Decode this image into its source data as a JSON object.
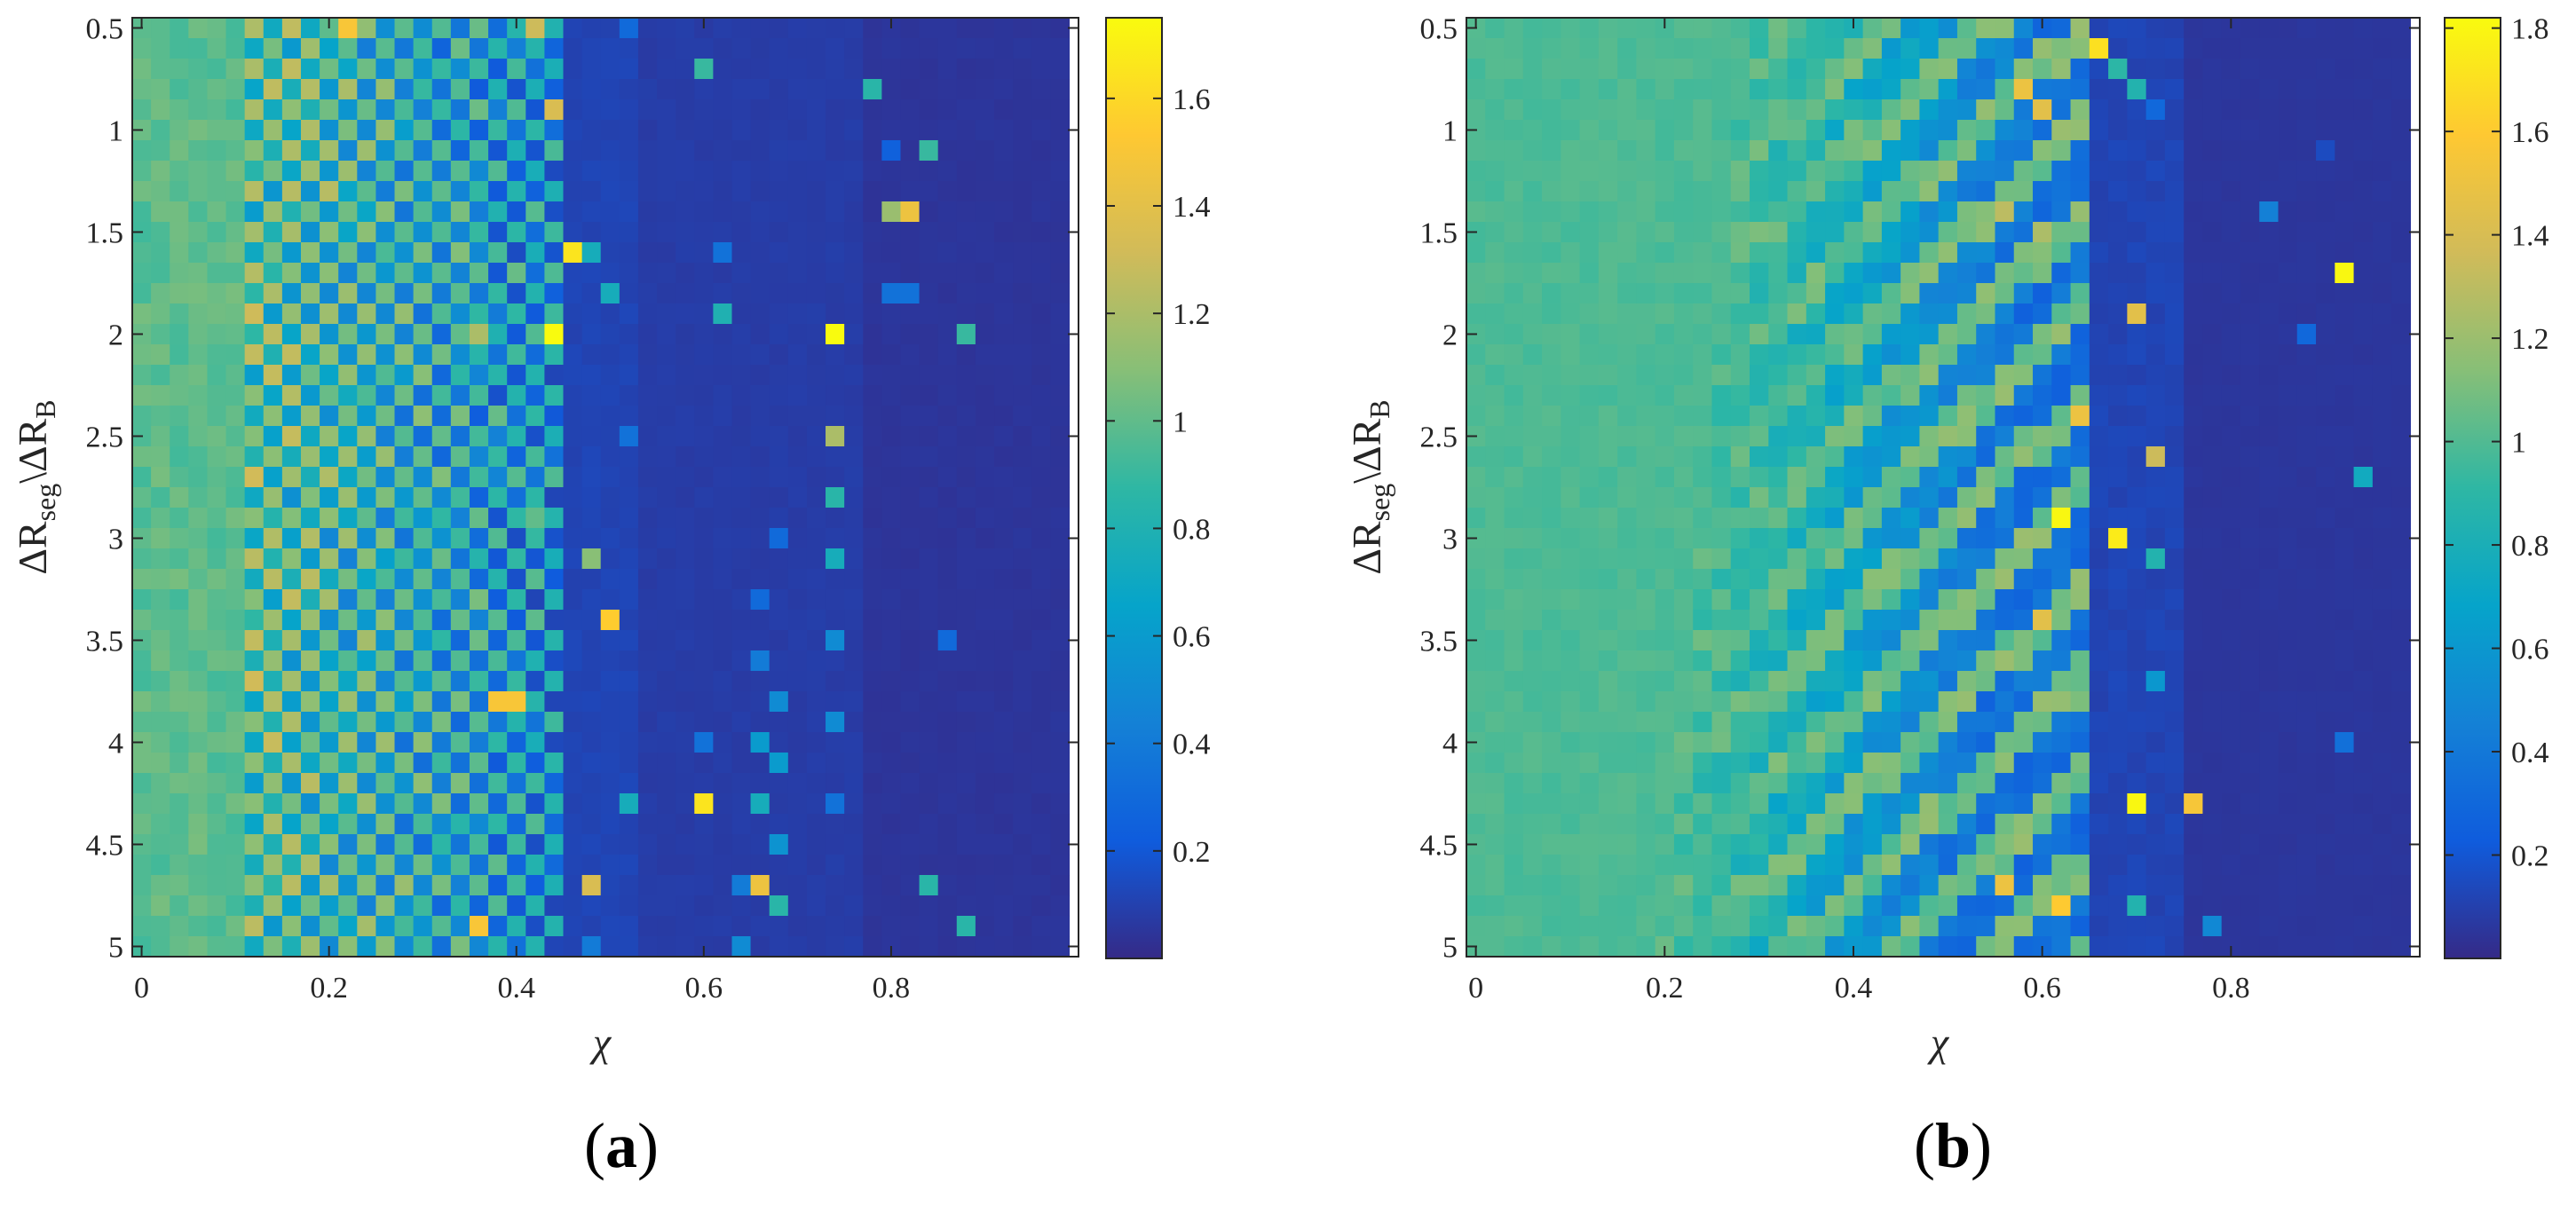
{
  "colormap": "parula",
  "colormap_stops": [
    "#352a87",
    "#0f5cdd",
    "#1481d6",
    "#06a4ca",
    "#2eb7a4",
    "#87bf77",
    "#d1bb59",
    "#fec832",
    "#f9fb0e"
  ],
  "chart_data": [
    {
      "type": "heatmap",
      "panel_label": "(a)",
      "panel_letter": "a",
      "xlabel": "χ",
      "ylabel_parts": [
        "ΔR",
        "seg",
        "\\ΔR",
        "B"
      ],
      "x_ticks": [
        0,
        0.2,
        0.4,
        0.6,
        0.8
      ],
      "x_tick_labels": [
        "0",
        "0.2",
        "0.4",
        "0.6",
        "0.8"
      ],
      "y_ticks": [
        0.5,
        1,
        1.5,
        2,
        2.5,
        3,
        3.5,
        4,
        4.5,
        5
      ],
      "y_tick_labels": [
        "0.5",
        "1",
        "1.5",
        "2",
        "2.5",
        "3",
        "3.5",
        "4",
        "4.5",
        "5"
      ],
      "xlim": [
        -0.01,
        1.0
      ],
      "ylim": [
        0.45,
        5.05
      ],
      "y_reversed": true,
      "grid_nx": 50,
      "grid_ny": 46,
      "colorbar": {
        "clim": [
          0,
          1.75
        ],
        "ticks": [
          0.2,
          0.4,
          0.6,
          0.8,
          1,
          1.2,
          1.4,
          1.6
        ],
        "tick_labels": [
          "0.2",
          "0.4",
          "0.6",
          "0.8",
          "1",
          "1.2",
          "1.4",
          "1.6"
        ]
      },
      "hot_spots": [
        {
          "x": 0.22,
          "y": 0.5,
          "v": 1.5
        },
        {
          "x": 0.42,
          "y": 0.5,
          "v": 1.3
        },
        {
          "x": 0.52,
          "y": 0.5,
          "v": 0.3
        },
        {
          "x": 0.6,
          "y": 0.65,
          "v": 0.9
        },
        {
          "x": 0.78,
          "y": 0.75,
          "v": 0.85
        },
        {
          "x": 0.44,
          "y": 0.95,
          "v": 1.35
        },
        {
          "x": 0.84,
          "y": 1.05,
          "v": 0.9
        },
        {
          "x": 0.8,
          "y": 1.05,
          "v": 0.25
        },
        {
          "x": 0.82,
          "y": 1.45,
          "v": 1.45
        },
        {
          "x": 0.8,
          "y": 1.45,
          "v": 1.15
        },
        {
          "x": 0.62,
          "y": 1.55,
          "v": 0.35
        },
        {
          "x": 0.46,
          "y": 1.6,
          "v": 1.65
        },
        {
          "x": 0.48,
          "y": 1.55,
          "v": 0.75
        },
        {
          "x": 0.5,
          "y": 1.8,
          "v": 0.75
        },
        {
          "x": 0.62,
          "y": 1.9,
          "v": 0.8
        },
        {
          "x": 0.8,
          "y": 1.8,
          "v": 0.35
        },
        {
          "x": 0.82,
          "y": 1.8,
          "v": 0.35
        },
        {
          "x": 0.44,
          "y": 2.05,
          "v": 1.75
        },
        {
          "x": 0.36,
          "y": 2.05,
          "v": 1.2
        },
        {
          "x": 0.74,
          "y": 2.05,
          "v": 1.75
        },
        {
          "x": 0.88,
          "y": 2.05,
          "v": 0.9
        },
        {
          "x": 0.52,
          "y": 2.45,
          "v": 0.35
        },
        {
          "x": 0.74,
          "y": 2.45,
          "v": 1.2
        },
        {
          "x": 0.74,
          "y": 2.8,
          "v": 0.85
        },
        {
          "x": 0.42,
          "y": 2.85,
          "v": 1.0
        },
        {
          "x": 0.68,
          "y": 3.05,
          "v": 0.3
        },
        {
          "x": 0.48,
          "y": 3.15,
          "v": 1.1
        },
        {
          "x": 0.74,
          "y": 3.15,
          "v": 0.75
        },
        {
          "x": 0.66,
          "y": 3.25,
          "v": 0.3
        },
        {
          "x": 0.5,
          "y": 3.35,
          "v": 1.55
        },
        {
          "x": 0.74,
          "y": 3.55,
          "v": 0.5
        },
        {
          "x": 0.86,
          "y": 3.55,
          "v": 0.3
        },
        {
          "x": 0.38,
          "y": 3.75,
          "v": 1.5
        },
        {
          "x": 0.4,
          "y": 3.75,
          "v": 1.5
        },
        {
          "x": 0.66,
          "y": 3.65,
          "v": 0.4
        },
        {
          "x": 0.68,
          "y": 3.75,
          "v": 0.5
        },
        {
          "x": 0.74,
          "y": 3.9,
          "v": 0.5
        },
        {
          "x": 0.6,
          "y": 4.0,
          "v": 0.35
        },
        {
          "x": 0.66,
          "y": 4.0,
          "v": 0.6
        },
        {
          "x": 0.68,
          "y": 4.1,
          "v": 0.6
        },
        {
          "x": 0.74,
          "y": 4.25,
          "v": 0.35
        },
        {
          "x": 0.6,
          "y": 4.35,
          "v": 1.65
        },
        {
          "x": 0.52,
          "y": 4.35,
          "v": 0.75
        },
        {
          "x": 0.66,
          "y": 4.35,
          "v": 0.75
        },
        {
          "x": 0.68,
          "y": 4.45,
          "v": 0.55
        },
        {
          "x": 0.48,
          "y": 4.65,
          "v": 1.35
        },
        {
          "x": 0.64,
          "y": 4.65,
          "v": 0.4
        },
        {
          "x": 0.66,
          "y": 4.7,
          "v": 1.45
        },
        {
          "x": 0.68,
          "y": 4.8,
          "v": 0.85
        },
        {
          "x": 0.84,
          "y": 4.65,
          "v": 0.85
        },
        {
          "x": 0.36,
          "y": 4.9,
          "v": 1.5
        },
        {
          "x": 0.88,
          "y": 4.9,
          "v": 0.85
        },
        {
          "x": 0.48,
          "y": 5.0,
          "v": 0.4
        },
        {
          "x": 0.64,
          "y": 5.0,
          "v": 0.5
        }
      ]
    },
    {
      "type": "heatmap",
      "panel_label": "(b)",
      "panel_letter": "b",
      "xlabel": "χ",
      "ylabel_parts": [
        "ΔR",
        "seg",
        "\\ΔR",
        "B"
      ],
      "x_ticks": [
        0,
        0.2,
        0.4,
        0.6,
        0.8
      ],
      "x_tick_labels": [
        "0",
        "0.2",
        "0.4",
        "0.6",
        "0.8"
      ],
      "y_ticks": [
        0.5,
        1,
        1.5,
        2,
        2.5,
        3,
        3.5,
        4,
        4.5,
        5
      ],
      "y_tick_labels": [
        "0.5",
        "1",
        "1.5",
        "2",
        "2.5",
        "3",
        "3.5",
        "4",
        "4.5",
        "5"
      ],
      "xlim": [
        -0.01,
        1.0
      ],
      "ylim": [
        0.45,
        5.05
      ],
      "y_reversed": true,
      "grid_nx": 50,
      "grid_ny": 46,
      "colorbar": {
        "clim": [
          0,
          1.82
        ],
        "ticks": [
          0.2,
          0.4,
          0.6,
          0.8,
          1,
          1.2,
          1.4,
          1.6,
          1.8
        ],
        "tick_labels": [
          "0.2",
          "0.4",
          "0.6",
          "0.8",
          "1",
          "1.2",
          "1.4",
          "1.6",
          "1.8"
        ]
      },
      "hot_spots": [
        {
          "x": 0.66,
          "y": 0.6,
          "v": 1.7
        },
        {
          "x": 0.58,
          "y": 0.75,
          "v": 1.5
        },
        {
          "x": 0.68,
          "y": 0.65,
          "v": 0.9
        },
        {
          "x": 0.7,
          "y": 0.75,
          "v": 0.85
        },
        {
          "x": 0.6,
          "y": 0.9,
          "v": 1.45
        },
        {
          "x": 0.72,
          "y": 0.9,
          "v": 0.3
        },
        {
          "x": 0.56,
          "y": 1.35,
          "v": 1.3
        },
        {
          "x": 0.6,
          "y": 1.5,
          "v": 1.25
        },
        {
          "x": 0.84,
          "y": 1.45,
          "v": 0.45
        },
        {
          "x": 0.9,
          "y": 1.15,
          "v": 0.15
        },
        {
          "x": 0.92,
          "y": 1.7,
          "v": 1.8
        },
        {
          "x": 0.7,
          "y": 1.95,
          "v": 1.45
        },
        {
          "x": 0.88,
          "y": 2.05,
          "v": 0.3
        },
        {
          "x": 0.64,
          "y": 2.35,
          "v": 1.5
        },
        {
          "x": 0.72,
          "y": 2.6,
          "v": 1.35
        },
        {
          "x": 0.94,
          "y": 2.7,
          "v": 0.75
        },
        {
          "x": 0.62,
          "y": 2.85,
          "v": 1.8
        },
        {
          "x": 0.68,
          "y": 3.05,
          "v": 1.75
        },
        {
          "x": 0.72,
          "y": 3.15,
          "v": 0.85
        },
        {
          "x": 0.6,
          "y": 3.35,
          "v": 1.45
        },
        {
          "x": 0.72,
          "y": 3.7,
          "v": 0.6
        },
        {
          "x": 0.7,
          "y": 4.25,
          "v": 1.8
        },
        {
          "x": 0.76,
          "y": 4.35,
          "v": 1.55
        },
        {
          "x": 0.92,
          "y": 4.05,
          "v": 0.35
        },
        {
          "x": 0.56,
          "y": 4.65,
          "v": 1.5
        },
        {
          "x": 0.62,
          "y": 4.75,
          "v": 1.6
        },
        {
          "x": 0.7,
          "y": 4.8,
          "v": 0.85
        },
        {
          "x": 0.78,
          "y": 4.9,
          "v": 0.5
        }
      ]
    }
  ]
}
